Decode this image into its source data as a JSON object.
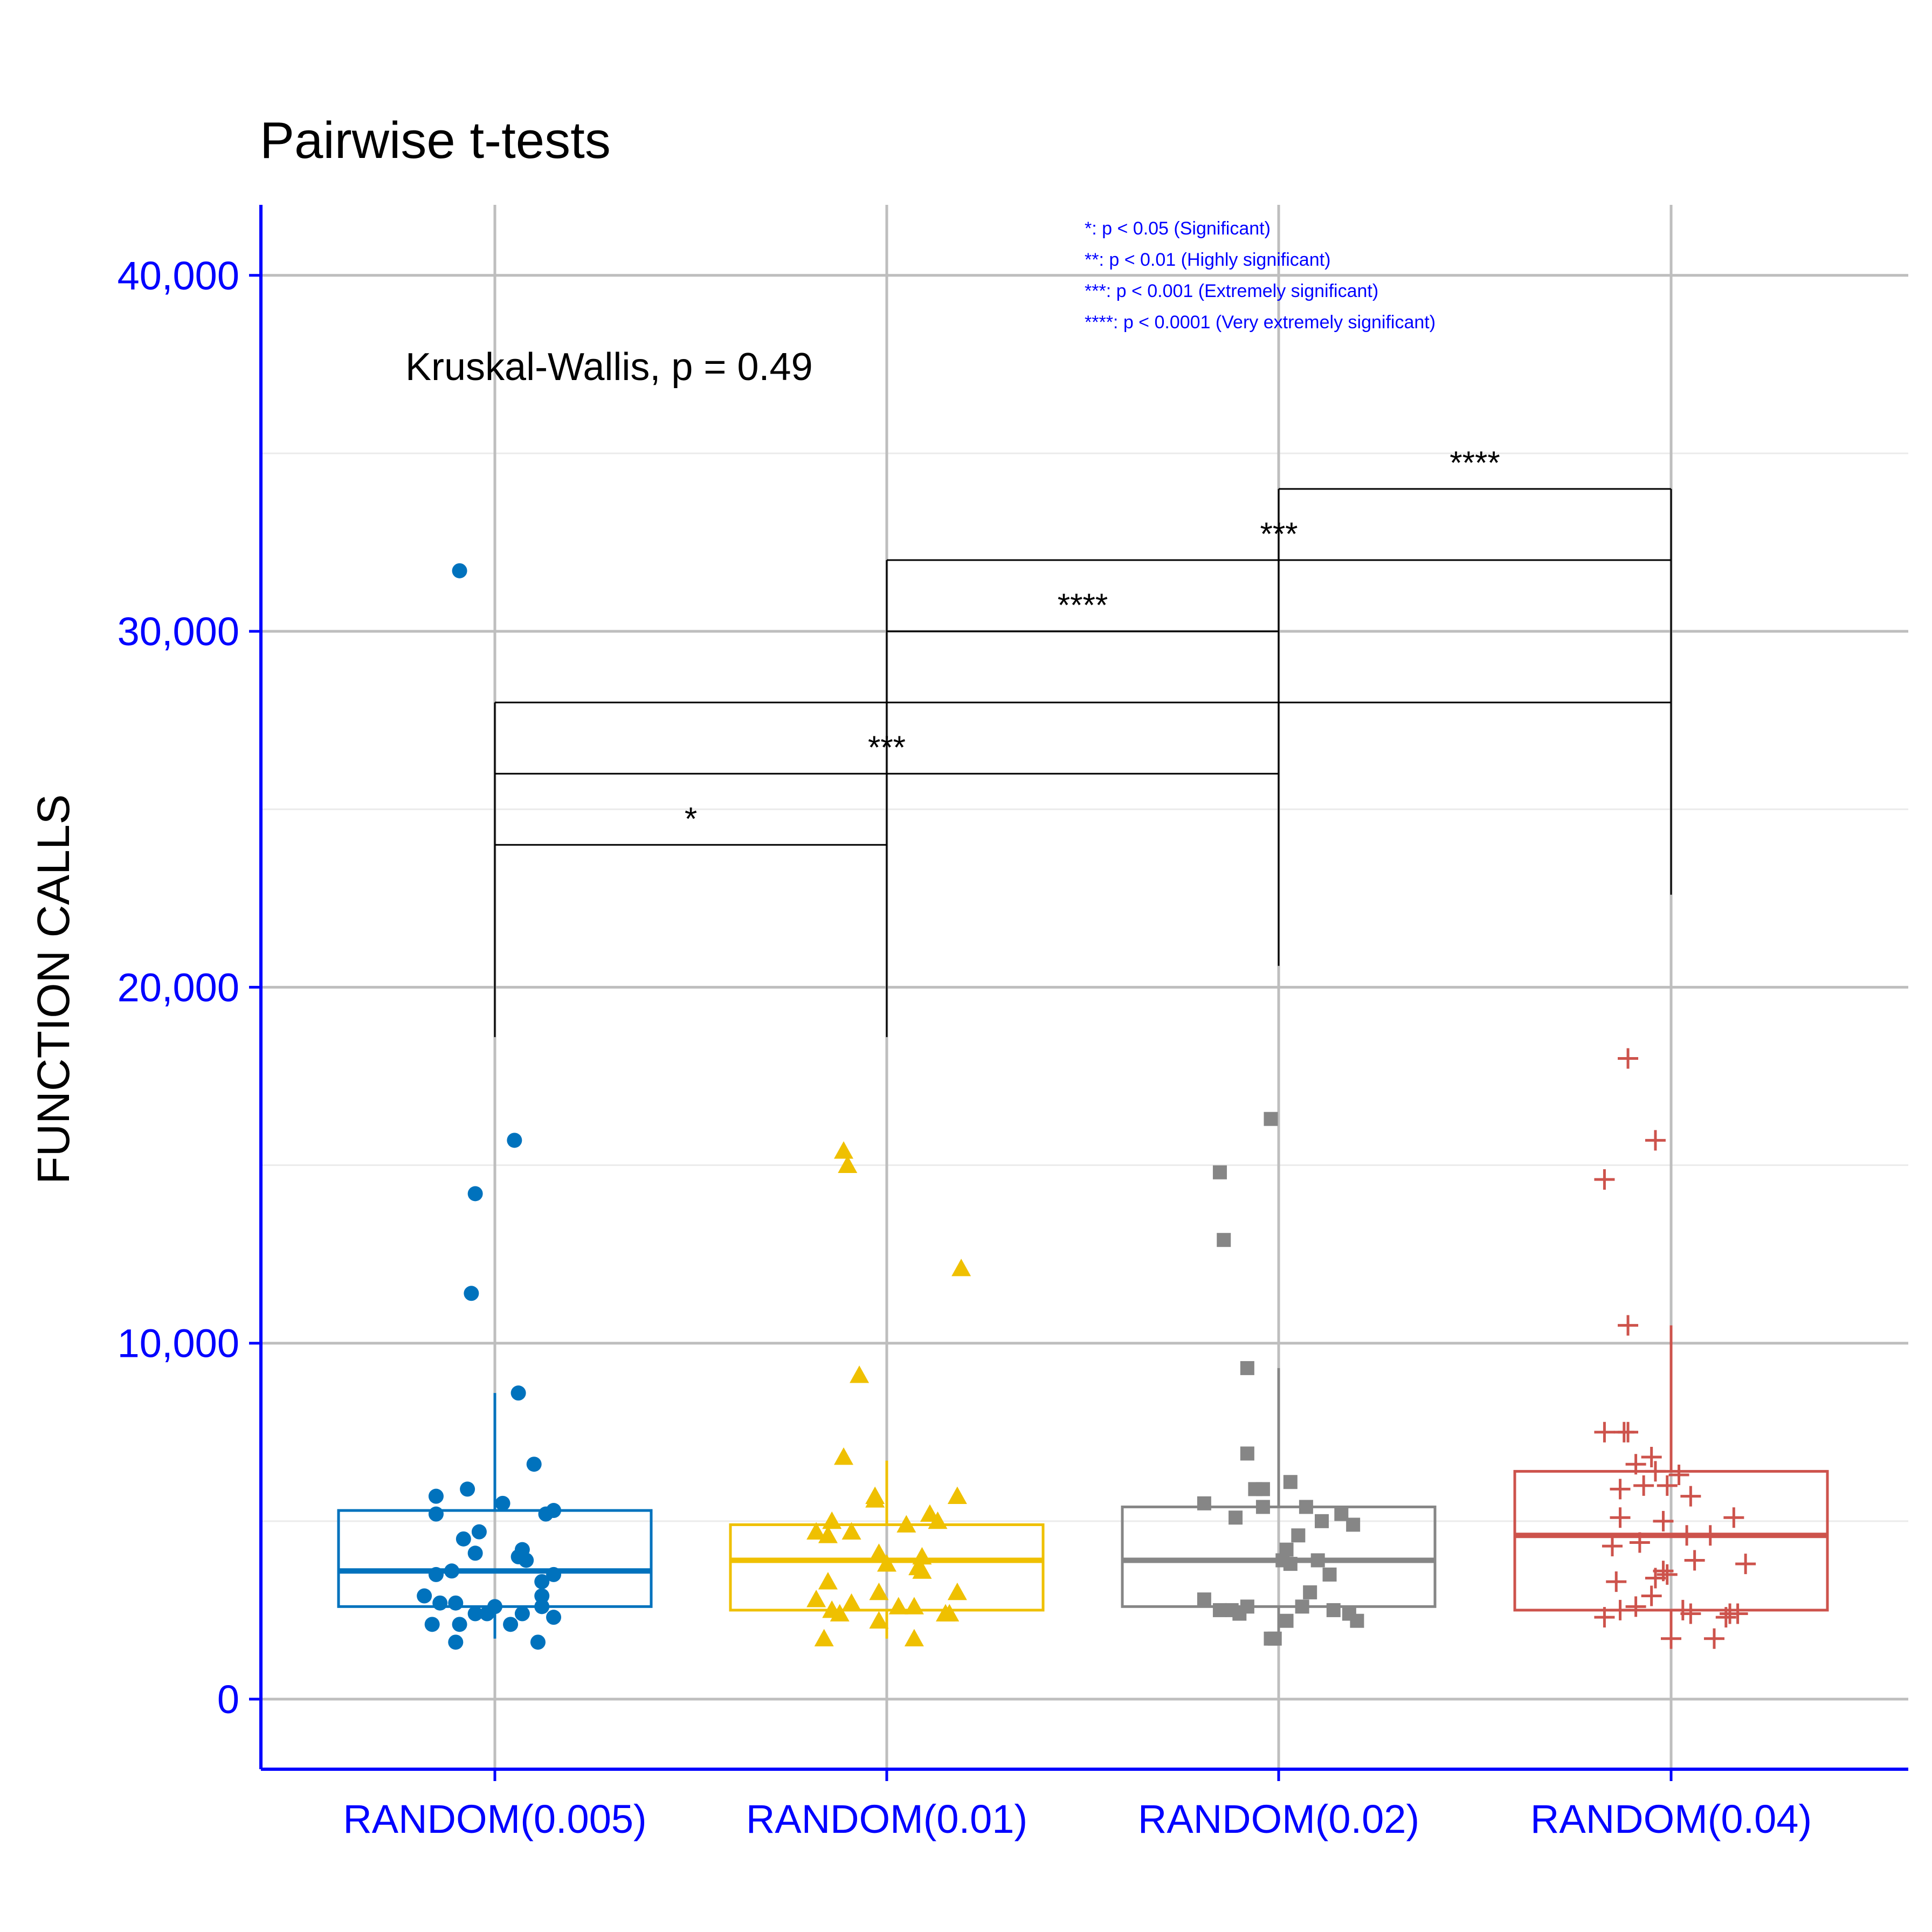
{
  "chart_data": {
    "type": "box",
    "title": "Pairwise t-tests",
    "ylabel": "FUNCTION CALLS",
    "xlabel": "",
    "ylim": [
      -2000,
      42000
    ],
    "yticks": [
      0,
      10000,
      20000,
      30000,
      40000
    ],
    "ytick_labels": [
      "0",
      "10,000",
      "20,000",
      "30,000",
      "40,000"
    ],
    "grid": true,
    "axis_color": "#0000ff",
    "annotation": "Kruskal-Wallis, p = 0.49",
    "legend_notes": [
      "*: p < 0.05 (Significant)",
      "**: p < 0.01 (Highly significant)",
      "***: p < 0.001 (Extremely significant)",
      "****: p < 0.0001 (Very extremely significant)"
    ],
    "categories": [
      "RANDOM(0.005)",
      "RANDOM(0.01)",
      "RANDOM(0.02)",
      "RANDOM(0.04)"
    ],
    "series": [
      {
        "color": "#0072bd",
        "shape": "circle",
        "box": {
          "q1": 2600,
          "median": 3600,
          "q3": 5300,
          "whisker_low": 1700,
          "whisker_high": 8600
        },
        "points": [
          [
            -0.09,
            31700
          ],
          [
            0.05,
            15700
          ],
          [
            -0.05,
            14200
          ],
          [
            -0.06,
            11400
          ],
          [
            0.06,
            8600
          ],
          [
            0.1,
            6600
          ],
          [
            -0.07,
            5900
          ],
          [
            -0.15,
            5700
          ],
          [
            0.02,
            5500
          ],
          [
            0.15,
            5300
          ],
          [
            -0.15,
            5200
          ],
          [
            0.13,
            5200
          ],
          [
            -0.04,
            4700
          ],
          [
            -0.08,
            4500
          ],
          [
            0.07,
            4200
          ],
          [
            -0.05,
            4100
          ],
          [
            0.08,
            3900
          ],
          [
            0.06,
            4000
          ],
          [
            -0.11,
            3600
          ],
          [
            -0.15,
            3500
          ],
          [
            0.15,
            3500
          ],
          [
            0.12,
            3300
          ],
          [
            -0.18,
            2900
          ],
          [
            0.12,
            2900
          ],
          [
            -0.14,
            2700
          ],
          [
            -0.1,
            2700
          ],
          [
            0.0,
            2600
          ],
          [
            0.12,
            2600
          ],
          [
            -0.05,
            2400
          ],
          [
            -0.02,
            2400
          ],
          [
            0.07,
            2400
          ],
          [
            0.15,
            2300
          ],
          [
            -0.16,
            2100
          ],
          [
            -0.09,
            2100
          ],
          [
            0.04,
            2100
          ],
          [
            -0.1,
            1600
          ],
          [
            0.11,
            1600
          ]
        ]
      },
      {
        "color": "#efc000",
        "shape": "triangle",
        "box": {
          "q1": 2500,
          "median": 3900,
          "q3": 4900,
          "whisker_low": 1700,
          "whisker_high": 6700
        },
        "points": [
          [
            -0.11,
            15400
          ],
          [
            -0.1,
            15000
          ],
          [
            0.19,
            12100
          ],
          [
            -0.07,
            9100
          ],
          [
            -0.11,
            6800
          ],
          [
            -0.03,
            5700
          ],
          [
            -0.03,
            5600
          ],
          [
            0.18,
            5700
          ],
          [
            0.11,
            5200
          ],
          [
            0.13,
            5000
          ],
          [
            -0.14,
            5000
          ],
          [
            0.05,
            4900
          ],
          [
            -0.09,
            4700
          ],
          [
            -0.18,
            4700
          ],
          [
            -0.15,
            4600
          ],
          [
            -0.02,
            4100
          ],
          [
            0.09,
            4000
          ],
          [
            0.0,
            3800
          ],
          [
            0.08,
            3700
          ],
          [
            0.09,
            3600
          ],
          [
            -0.15,
            3300
          ],
          [
            -0.02,
            3000
          ],
          [
            0.18,
            3000
          ],
          [
            -0.18,
            2800
          ],
          [
            -0.09,
            2700
          ],
          [
            0.03,
            2600
          ],
          [
            0.07,
            2600
          ],
          [
            -0.14,
            2500
          ],
          [
            -0.12,
            2400
          ],
          [
            0.15,
            2400
          ],
          [
            -0.02,
            2200
          ],
          [
            0.16,
            2400
          ],
          [
            -0.16,
            1700
          ],
          [
            0.07,
            1700
          ]
        ]
      },
      {
        "color": "#868686",
        "shape": "square",
        "box": {
          "q1": 2600,
          "median": 3900,
          "q3": 5400,
          "whisker_low": 1700,
          "whisker_high": 9300
        },
        "points": [
          [
            -0.02,
            16300
          ],
          [
            -0.15,
            14800
          ],
          [
            -0.14,
            12900
          ],
          [
            -0.08,
            9300
          ],
          [
            -0.08,
            6900
          ],
          [
            0.03,
            6100
          ],
          [
            -0.06,
            5900
          ],
          [
            -0.04,
            5900
          ],
          [
            -0.19,
            5500
          ],
          [
            -0.04,
            5400
          ],
          [
            0.07,
            5400
          ],
          [
            0.16,
            5200
          ],
          [
            -0.11,
            5100
          ],
          [
            0.11,
            5000
          ],
          [
            0.19,
            4900
          ],
          [
            0.05,
            4600
          ],
          [
            0.02,
            4200
          ],
          [
            0.01,
            3900
          ],
          [
            0.1,
            3900
          ],
          [
            0.03,
            3800
          ],
          [
            0.13,
            3500
          ],
          [
            0.08,
            3000
          ],
          [
            -0.19,
            2800
          ],
          [
            -0.15,
            2500
          ],
          [
            -0.12,
            2500
          ],
          [
            -0.08,
            2600
          ],
          [
            -0.1,
            2400
          ],
          [
            0.06,
            2600
          ],
          [
            0.18,
            2400
          ],
          [
            0.14,
            2500
          ],
          [
            0.02,
            2200
          ],
          [
            0.2,
            2200
          ],
          [
            -0.01,
            1700
          ],
          [
            -0.02,
            1700
          ]
        ]
      },
      {
        "color": "#cd534c",
        "shape": "plus",
        "box": {
          "q1": 2500,
          "median": 4600,
          "q3": 6400,
          "whisker_low": 1700,
          "whisker_high": 10500
        },
        "points": [
          [
            -0.11,
            18000
          ],
          [
            -0.04,
            15700
          ],
          [
            -0.17,
            14600
          ],
          [
            -0.11,
            10500
          ],
          [
            -0.17,
            7500
          ],
          [
            -0.12,
            7500
          ],
          [
            -0.11,
            7500
          ],
          [
            -0.05,
            6800
          ],
          [
            -0.09,
            6600
          ],
          [
            -0.04,
            6400
          ],
          [
            0.02,
            6300
          ],
          [
            -0.07,
            6000
          ],
          [
            -0.01,
            6000
          ],
          [
            -0.13,
            5900
          ],
          [
            0.05,
            5700
          ],
          [
            0.16,
            5100
          ],
          [
            -0.13,
            5100
          ],
          [
            -0.02,
            5000
          ],
          [
            0.1,
            4600
          ],
          [
            0.04,
            4600
          ],
          [
            -0.08,
            4400
          ],
          [
            -0.15,
            4300
          ],
          [
            0.06,
            3900
          ],
          [
            0.19,
            3800
          ],
          [
            -0.02,
            3600
          ],
          [
            -0.01,
            3500
          ],
          [
            -0.04,
            3400
          ],
          [
            -0.14,
            3300
          ],
          [
            -0.05,
            2900
          ],
          [
            -0.09,
            2600
          ],
          [
            -0.13,
            2500
          ],
          [
            0.03,
            2500
          ],
          [
            0.05,
            2400
          ],
          [
            0.15,
            2400
          ],
          [
            0.17,
            2400
          ],
          [
            -0.17,
            2300
          ],
          [
            0.14,
            2300
          ],
          [
            0.0,
            1700
          ],
          [
            0.11,
            1700
          ]
        ]
      }
    ],
    "comparisons": [
      {
        "from": 0,
        "to": 1,
        "y": 24000,
        "label": "*"
      },
      {
        "from": 0,
        "to": 2,
        "y": 26000,
        "label": "***"
      },
      {
        "from": 0,
        "to": 3,
        "y": 28000,
        "label": ""
      },
      {
        "from": 1,
        "to": 2,
        "y": 30000,
        "label": "****"
      },
      {
        "from": 1,
        "to": 3,
        "y": 32000,
        "label": "***"
      },
      {
        "from": 2,
        "to": 3,
        "y": 34000,
        "label": "****"
      }
    ],
    "comparison_floor": [
      18600,
      18600,
      20600,
      22600
    ],
    "comparison_floor_mid": [
      24600,
      24600
    ]
  }
}
